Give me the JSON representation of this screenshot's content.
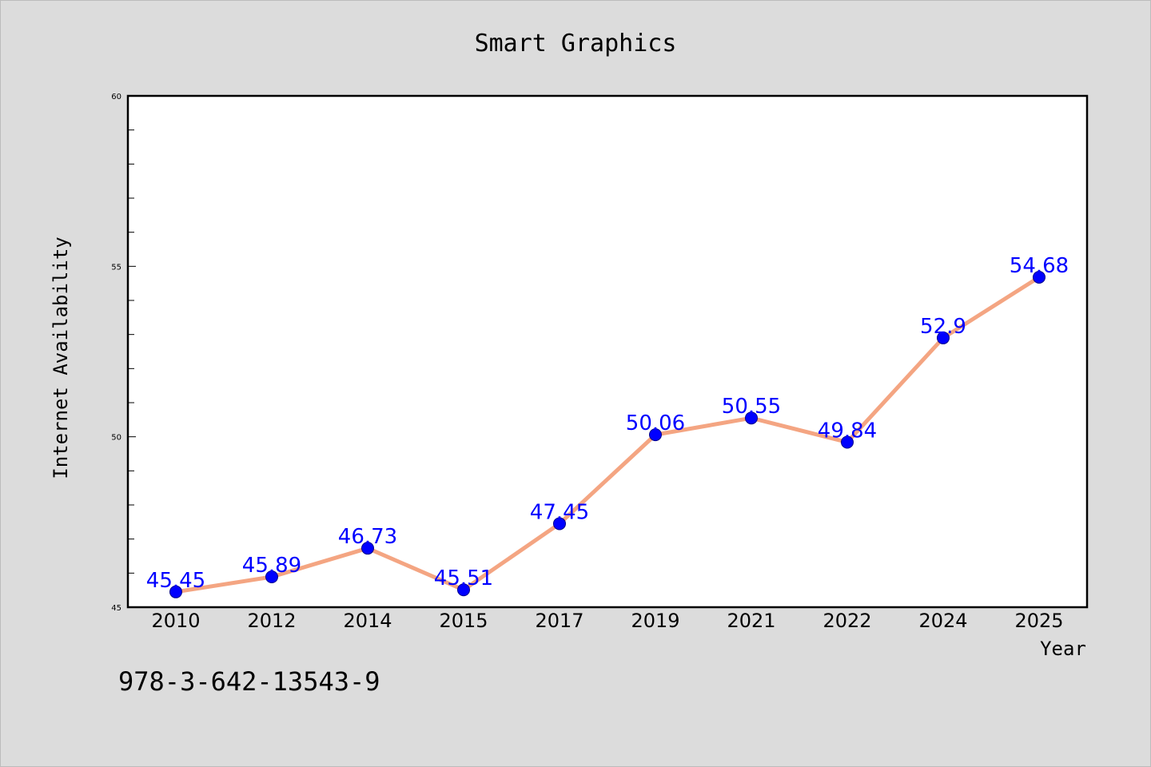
{
  "chart_data": {
    "type": "line",
    "title": "Smart Graphics",
    "xlabel": "Year",
    "ylabel": "Internet Availability",
    "categories": [
      "2010",
      "2012",
      "2014",
      "2015",
      "2017",
      "2019",
      "2021",
      "2022",
      "2024",
      "2025"
    ],
    "series": [
      {
        "values": [
          45.45,
          45.89,
          46.73,
          45.51,
          47.45,
          50.06,
          50.55,
          49.84,
          52.9,
          54.68
        ],
        "labels": [
          "45.45",
          "45.89",
          "46.73",
          "45.51",
          "47.45",
          "50.06",
          "50.55",
          "49.84",
          "52.9",
          "54.68"
        ]
      }
    ],
    "ylim": [
      45,
      60
    ],
    "yticks": [
      "45",
      "50",
      "55",
      "60"
    ],
    "ytick_values": [
      45,
      50,
      55,
      60
    ],
    "minor_step": 1,
    "grid": false,
    "colors": {
      "line": "#f4a582",
      "marker": "#0000ff",
      "label": "#0000ff",
      "background": "#dcdcdc",
      "plot_background": "#ffffff"
    }
  },
  "footer": {
    "isbn": "978-3-642-13543-9"
  }
}
